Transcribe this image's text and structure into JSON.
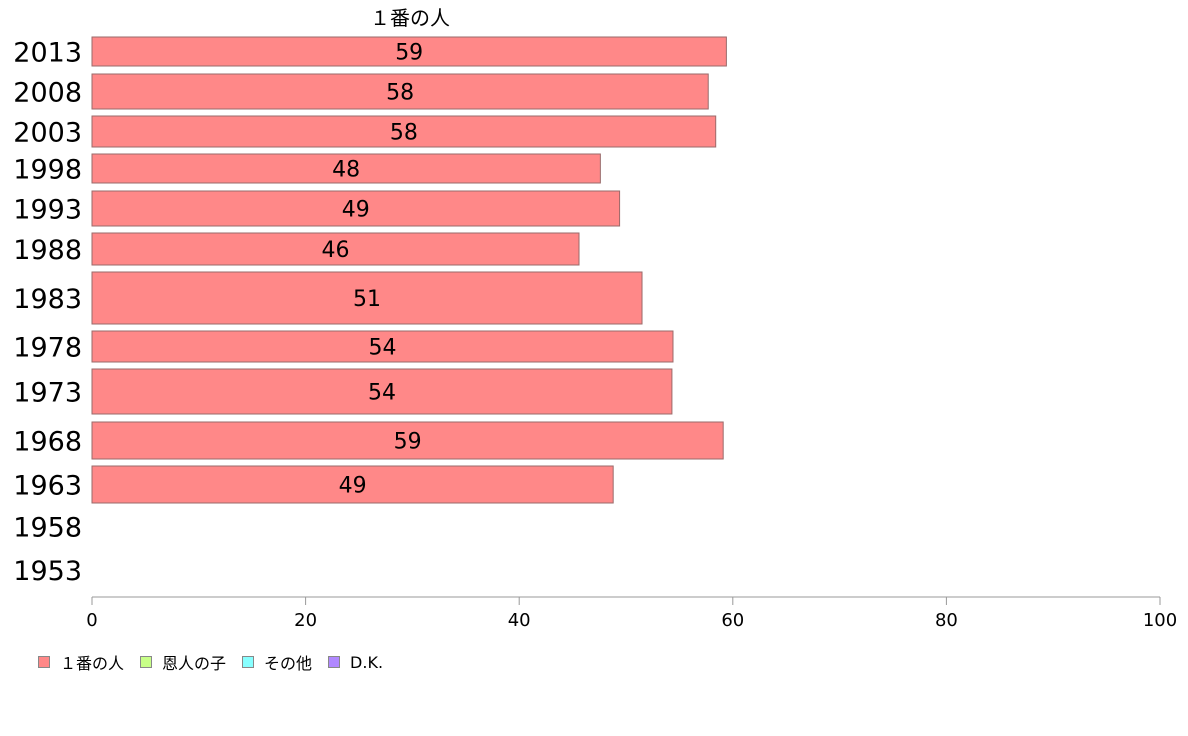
{
  "chart_data": {
    "type": "bar",
    "orientation": "horizontal",
    "title": "１番の人",
    "categories": [
      "2013",
      "2008",
      "2003",
      "1998",
      "1993",
      "1988",
      "1983",
      "1978",
      "1973",
      "1968",
      "1963",
      "1958",
      "1953"
    ],
    "series": [
      {
        "name": "１番の人",
        "color": "#ff8888",
        "values": [
          59,
          58,
          58,
          48,
          49,
          46,
          51,
          54,
          54,
          59,
          49,
          null,
          null
        ],
        "exact": [
          59.4,
          57.7,
          58.4,
          47.6,
          49.4,
          45.6,
          51.5,
          54.4,
          54.3,
          59.1,
          48.8,
          null,
          null
        ]
      }
    ],
    "xlim": [
      0,
      100
    ],
    "xticks": [
      "0",
      "20",
      "40",
      "60",
      "80",
      "100"
    ],
    "legend_position": "bottom-left"
  },
  "legend": [
    {
      "label": "１番の人",
      "color": "#ff8888"
    },
    {
      "label": "恩人の子",
      "color": "#c8ff88"
    },
    {
      "label": "その他",
      "color": "#88ffff"
    },
    {
      "label": "D.K.",
      "color": "#b088ff"
    }
  ]
}
